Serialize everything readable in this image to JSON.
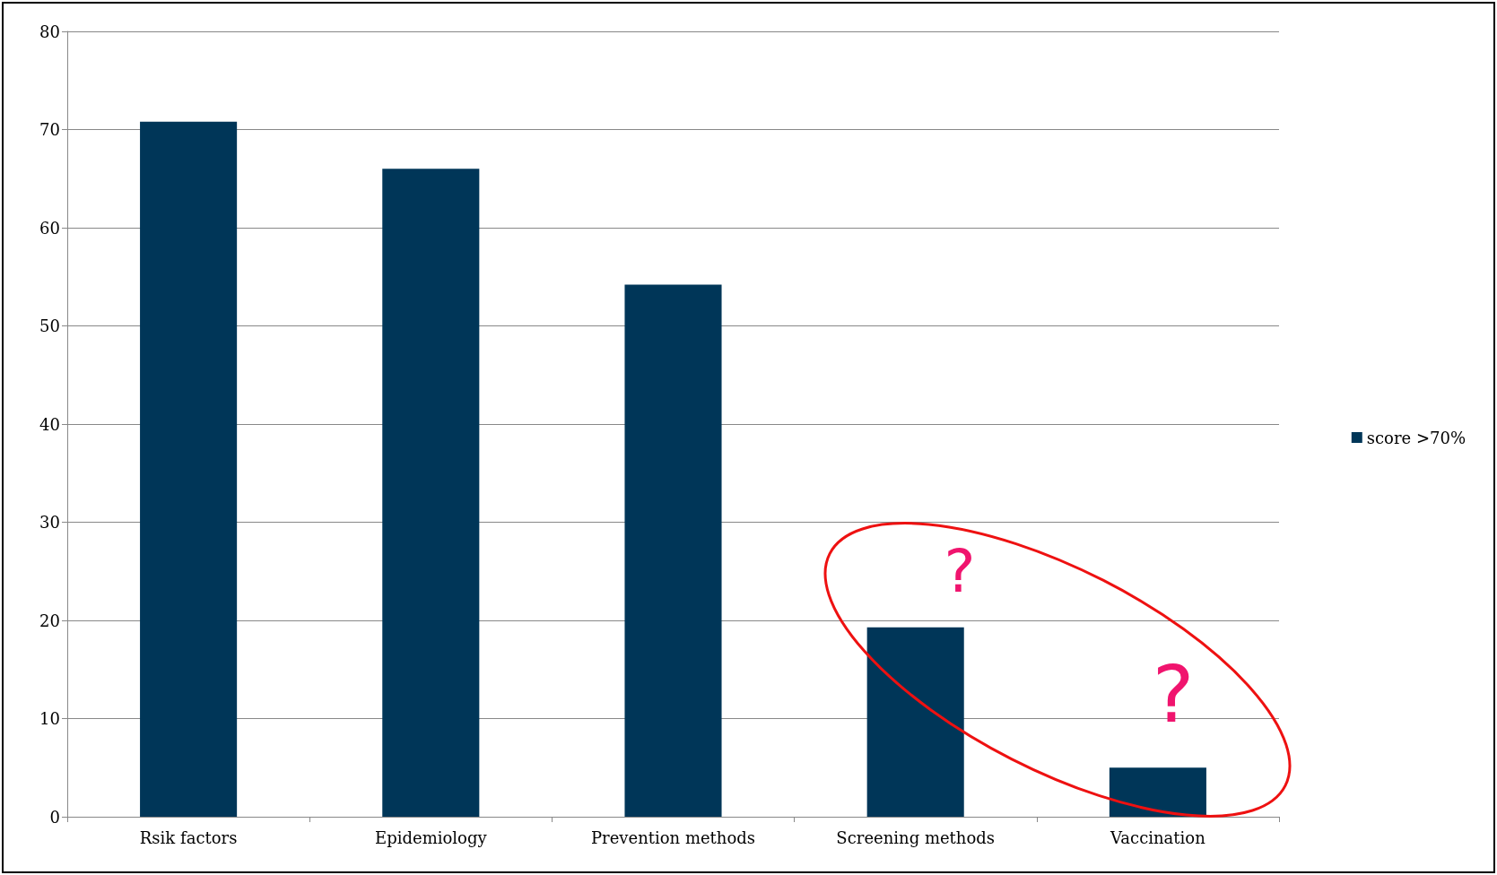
{
  "chart_data": {
    "type": "bar",
    "categories": [
      "Rsik factors",
      "Epidemiology",
      "Prevention methods",
      "Screening methods",
      "Vaccination"
    ],
    "series": [
      {
        "name": "score >70%",
        "color": "#003658",
        "values": [
          70.8,
          66.0,
          54.2,
          19.3,
          5.0
        ]
      }
    ],
    "ylim": [
      0,
      80
    ],
    "yticks": [
      0,
      10,
      20,
      30,
      40,
      50,
      60,
      70,
      80
    ],
    "grid": "y",
    "legend": "right",
    "annotations": [
      "?",
      "?"
    ]
  }
}
